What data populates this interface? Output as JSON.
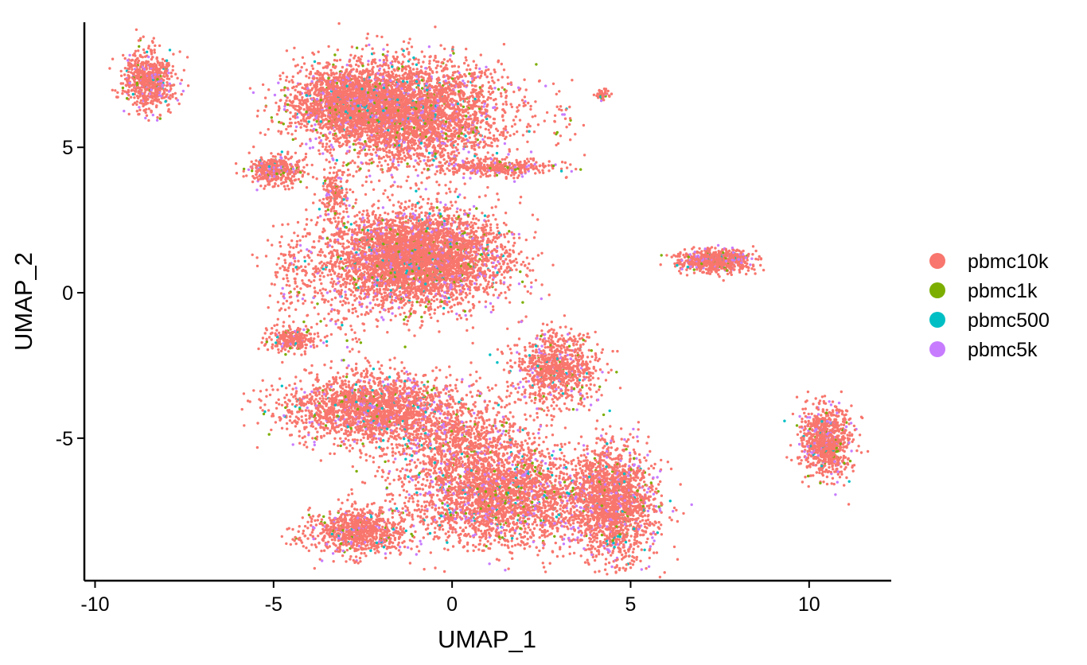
{
  "chart_data": {
    "type": "scatter",
    "title": "",
    "xlabel": "UMAP_1",
    "ylabel": "UMAP_2",
    "xlim": [
      -10.3,
      12.3
    ],
    "ylim": [
      -9.9,
      9.3
    ],
    "x_ticks": [
      -10,
      -5,
      0,
      5,
      10
    ],
    "y_ticks": [
      -5,
      0,
      5
    ],
    "x_tick_labels": [
      "-10",
      "-5",
      "0",
      "5",
      "10"
    ],
    "y_tick_labels": [
      "-5",
      "0",
      "5"
    ],
    "grid": false,
    "legend_position": "right",
    "series": [
      {
        "name": "pbmc10k",
        "color": "#F8766D"
      },
      {
        "name": "pbmc1k",
        "color": "#7CAE00"
      },
      {
        "name": "pbmc500",
        "color": "#00BFC4"
      },
      {
        "name": "pbmc5k",
        "color": "#C77CFF"
      }
    ],
    "clusters": [
      {
        "cx": -8.5,
        "cy": 7.3,
        "sx": 0.35,
        "sy": 0.5,
        "n": 700
      },
      {
        "cx": -3.0,
        "cy": 6.6,
        "sx": 0.8,
        "sy": 0.6,
        "n": 1500
      },
      {
        "cx": -1.2,
        "cy": 6.2,
        "sx": 1.3,
        "sy": 0.9,
        "n": 3600
      },
      {
        "cx": -4.9,
        "cy": 4.2,
        "sx": 0.4,
        "sy": 0.25,
        "n": 400
      },
      {
        "cx": 1.3,
        "cy": 4.3,
        "sx": 0.8,
        "sy": 0.15,
        "n": 350
      },
      {
        "cx": -3.3,
        "cy": 3.3,
        "sx": 0.2,
        "sy": 0.5,
        "n": 180
      },
      {
        "cx": -1.0,
        "cy": 1.2,
        "sx": 1.2,
        "sy": 0.8,
        "n": 4500
      },
      {
        "cx": -4.5,
        "cy": -1.6,
        "sx": 0.35,
        "sy": 0.2,
        "n": 260
      },
      {
        "cx": -2.2,
        "cy": -4.0,
        "sx": 1.2,
        "sy": 0.6,
        "n": 2200
      },
      {
        "cx": 2.9,
        "cy": -2.6,
        "sx": 0.6,
        "sy": 0.6,
        "n": 900
      },
      {
        "cx": 0.5,
        "cy": -5.5,
        "sx": 1.0,
        "sy": 0.9,
        "n": 1200
      },
      {
        "cx": 1.5,
        "cy": -7.1,
        "sx": 1.3,
        "sy": 0.8,
        "n": 2300
      },
      {
        "cx": 4.5,
        "cy": -7.2,
        "sx": 0.6,
        "sy": 1.0,
        "n": 1800
      },
      {
        "cx": -2.6,
        "cy": -8.2,
        "sx": 0.7,
        "sy": 0.4,
        "n": 900
      },
      {
        "cx": 7.4,
        "cy": 1.1,
        "sx": 0.5,
        "sy": 0.2,
        "n": 700
      },
      {
        "cx": 10.5,
        "cy": -5.1,
        "sx": 0.35,
        "sy": 0.6,
        "n": 900
      },
      {
        "cx": 4.2,
        "cy": 6.8,
        "sx": 0.12,
        "sy": 0.12,
        "n": 40
      },
      {
        "cx": 3.2,
        "cy": 5.9,
        "sx": 0.35,
        "sy": 0.4,
        "n": 25
      },
      {
        "cx": -4.5,
        "cy": 0.6,
        "sx": 0.3,
        "sy": 0.8,
        "n": 100
      },
      {
        "cx": -3.0,
        "cy": -0.2,
        "sx": 0.9,
        "sy": 0.9,
        "n": 220
      }
    ]
  }
}
